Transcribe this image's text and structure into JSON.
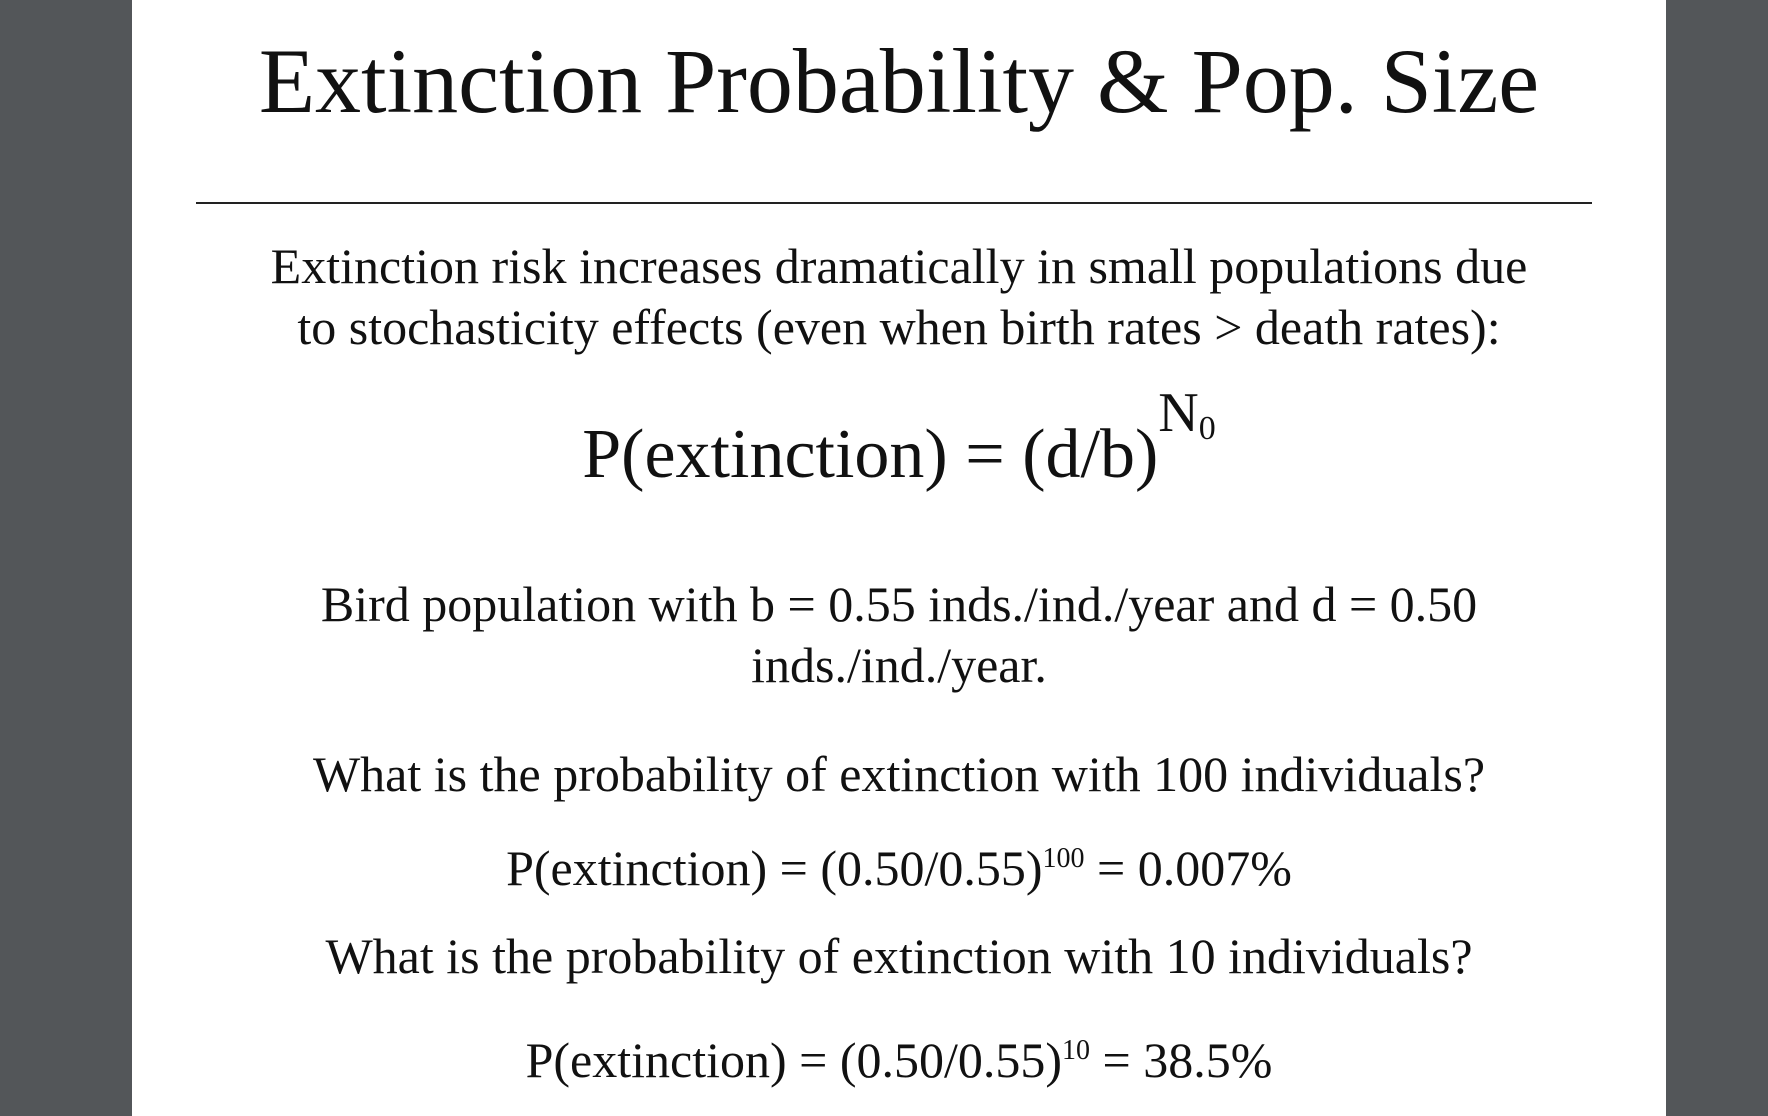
{
  "slide": {
    "title": "Extinction Probability & Pop. Size",
    "intro_line1": "Extinction risk increases dramatically in small populations due",
    "intro_line2": "to stochasticity effects (even when birth rates > death rates):",
    "formula": {
      "lhs": "P(extinction) = (d/b)",
      "exponent": "N",
      "exponent_subscript": "0"
    },
    "example_line1": "Bird population with b = 0.55 inds./ind./year and d = 0.50",
    "example_line2": "inds./ind./year.",
    "question1": "What is the probability of extinction with 100 individuals?",
    "answer1": {
      "base": "P(extinction) = (0.50/0.55)",
      "exponent": "100",
      "result": " = 0.007%"
    },
    "question2": "What is the probability of extinction with 10 individuals?",
    "answer2": {
      "base": "P(extinction) = (0.50/0.55)",
      "exponent": "10",
      "result": " = 38.5%"
    }
  }
}
